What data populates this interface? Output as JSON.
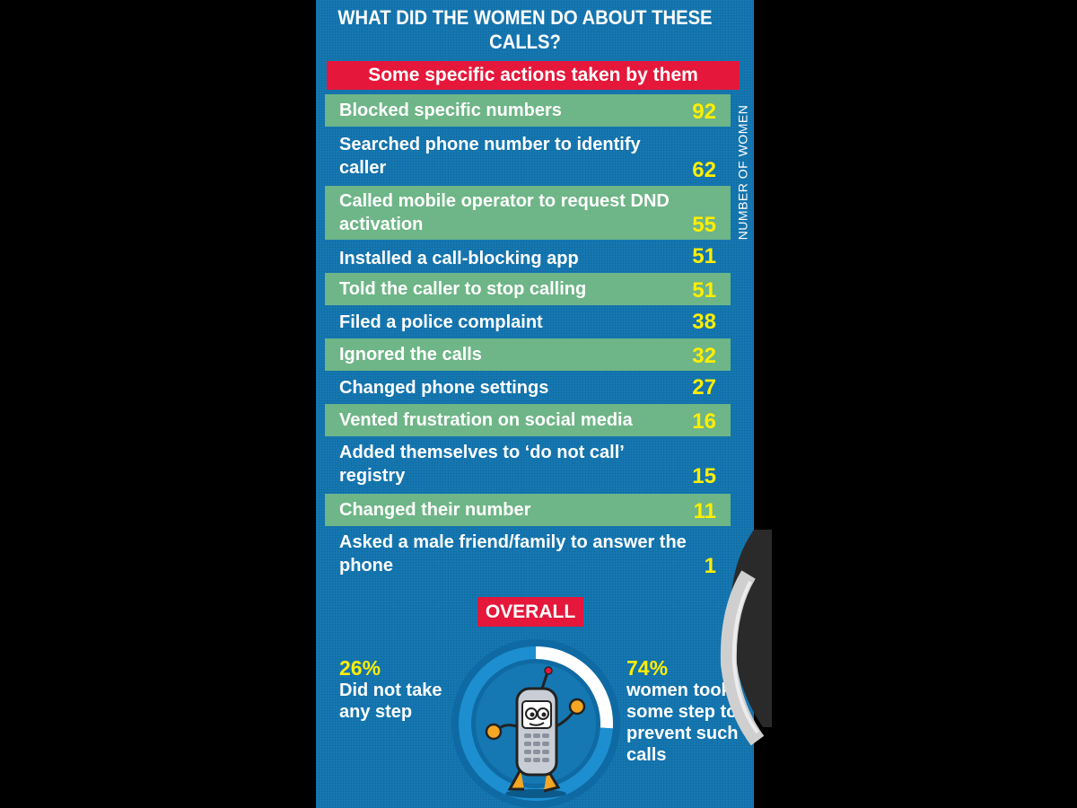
{
  "chart_data": {
    "type": "bar",
    "title": "WHAT DID THE WOMEN DO ABOUT THESE CALLS?",
    "subtitle": "Some specific actions taken by them",
    "ylabel": "NUMBER OF WOMEN",
    "categories": [
      "Blocked specific numbers",
      "Searched phone number to identify caller",
      "Called mobile operator to request DND activation",
      "Installed a call-blocking app",
      "Told the caller to stop calling",
      "Filed a police complaint",
      "Ignored the calls",
      "Changed phone settings",
      "Vented frustration on social media",
      "Added themselves to ‘do not call’ registry",
      "Changed their number",
      "Asked a male friend/family to answer the phone"
    ],
    "values": [
      92,
      62,
      55,
      51,
      51,
      38,
      32,
      27,
      16,
      15,
      11,
      1
    ]
  },
  "overall": {
    "label": "OVERALL",
    "type": "pie",
    "slices": [
      {
        "percent_label": "26%",
        "value": 26,
        "description": "Did not take any step",
        "color": "#ffffff"
      },
      {
        "percent_label": "74%",
        "value": 74,
        "description": "women took some step to prevent such calls",
        "color": "#1d8fd0"
      }
    ],
    "center_icon": "cartoon-mobile-phone-icon"
  },
  "colors": {
    "background": "#1578b3",
    "row_shade": "#6eb587",
    "accent_red": "#e5173a",
    "value_yellow": "#ffee00"
  }
}
